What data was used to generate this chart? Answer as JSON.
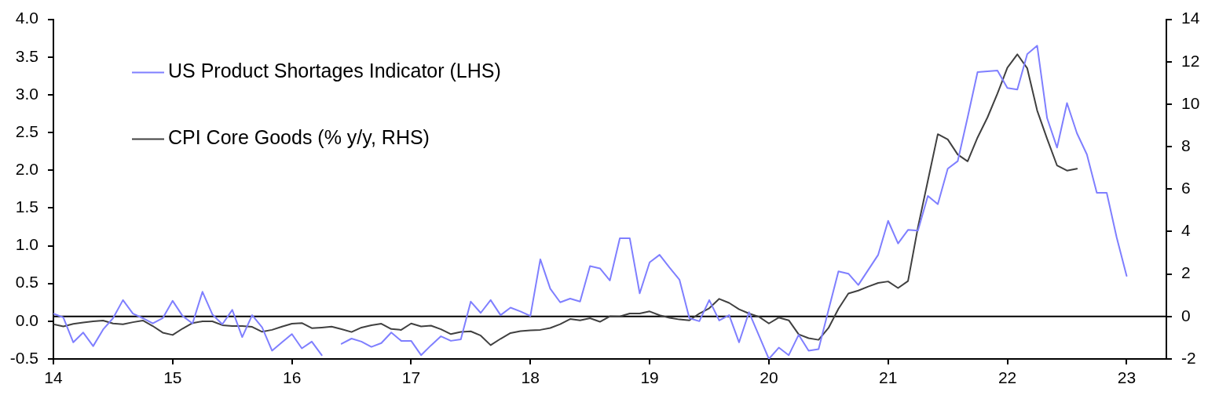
{
  "chart_data": {
    "type": "line",
    "x": [
      "2014-01",
      "2014-02",
      "2014-03",
      "2014-04",
      "2014-05",
      "2014-06",
      "2014-07",
      "2014-08",
      "2014-09",
      "2014-10",
      "2014-11",
      "2014-12",
      "2015-01",
      "2015-02",
      "2015-03",
      "2015-04",
      "2015-05",
      "2015-06",
      "2015-07",
      "2015-08",
      "2015-09",
      "2015-10",
      "2015-11",
      "2015-12",
      "2016-01",
      "2016-02",
      "2016-03",
      "2016-04",
      "2016-05",
      "2016-06",
      "2016-07",
      "2016-08",
      "2016-09",
      "2016-10",
      "2016-11",
      "2016-12",
      "2017-01",
      "2017-02",
      "2017-03",
      "2017-04",
      "2017-05",
      "2017-06",
      "2017-07",
      "2017-08",
      "2017-09",
      "2017-10",
      "2017-11",
      "2017-12",
      "2018-01",
      "2018-02",
      "2018-03",
      "2018-04",
      "2018-05",
      "2018-06",
      "2018-07",
      "2018-08",
      "2018-09",
      "2018-10",
      "2018-11",
      "2018-12",
      "2019-01",
      "2019-02",
      "2019-03",
      "2019-04",
      "2019-05",
      "2019-06",
      "2019-07",
      "2019-08",
      "2019-09",
      "2019-10",
      "2019-11",
      "2019-12",
      "2020-01",
      "2020-02",
      "2020-03",
      "2020-04",
      "2020-05",
      "2020-06",
      "2020-07",
      "2020-08",
      "2020-09",
      "2020-10",
      "2020-11",
      "2020-12",
      "2021-01",
      "2021-02",
      "2021-03",
      "2021-04",
      "2021-05",
      "2021-06",
      "2021-07",
      "2021-08",
      "2021-09",
      "2021-10",
      "2021-11",
      "2021-12",
      "2022-01",
      "2022-02",
      "2022-03",
      "2022-04",
      "2022-05",
      "2022-06",
      "2022-07",
      "2022-08",
      "2022-09",
      "2022-10",
      "2022-11",
      "2022-12",
      "2023-01"
    ],
    "series": [
      {
        "name": "US Product Shortages Indicator (LHS)",
        "color": "#7f7fff",
        "axis": "y",
        "values": [
          0.1,
          0.05,
          -0.28,
          -0.15,
          -0.33,
          -0.11,
          0.04,
          0.28,
          0.1,
          0.04,
          -0.03,
          0.04,
          0.27,
          0.07,
          -0.03,
          0.39,
          0.09,
          -0.04,
          0.15,
          -0.21,
          0.08,
          -0.08,
          -0.39,
          -0.28,
          -0.17,
          -0.36,
          -0.27,
          -0.45,
          null,
          -0.3,
          -0.23,
          -0.27,
          -0.34,
          -0.29,
          -0.15,
          -0.26,
          -0.26,
          -0.45,
          -0.32,
          -0.2,
          -0.26,
          -0.24,
          0.26,
          0.11,
          0.28,
          0.08,
          0.18,
          0.13,
          0.07,
          0.82,
          0.43,
          0.25,
          0.3,
          0.26,
          0.73,
          0.7,
          0.54,
          1.1,
          1.1,
          0.37,
          0.78,
          0.88,
          0.71,
          0.55,
          0.04,
          0.0,
          0.28,
          0.01,
          0.08,
          -0.28,
          0.12,
          -0.19,
          -0.5,
          -0.35,
          -0.45,
          -0.18,
          -0.39,
          -0.37,
          0.15,
          0.66,
          0.63,
          0.48,
          0.68,
          0.88,
          1.33,
          1.03,
          1.21,
          1.2,
          1.66,
          1.55,
          2.02,
          2.12,
          2.7,
          3.3,
          3.31,
          3.32,
          3.09,
          3.07,
          3.54,
          3.65,
          2.69,
          2.3,
          2.89,
          2.49,
          2.21,
          1.7,
          1.7,
          1.11,
          0.6
        ]
      },
      {
        "name": "CPI Core Goods (% y/y, RHS)",
        "color": "#404040",
        "axis": "y2",
        "values": [
          -0.37,
          -0.47,
          -0.35,
          -0.28,
          -0.23,
          -0.19,
          -0.33,
          -0.37,
          -0.27,
          -0.19,
          -0.45,
          -0.76,
          -0.87,
          -0.57,
          -0.31,
          -0.23,
          -0.23,
          -0.41,
          -0.45,
          -0.45,
          -0.49,
          -0.72,
          -0.63,
          -0.48,
          -0.34,
          -0.31,
          -0.55,
          -0.52,
          -0.48,
          -0.6,
          -0.73,
          -0.52,
          -0.41,
          -0.34,
          -0.59,
          -0.63,
          -0.33,
          -0.47,
          -0.43,
          -0.6,
          -0.83,
          -0.73,
          -0.7,
          -0.9,
          -1.35,
          -1.05,
          -0.78,
          -0.69,
          -0.65,
          -0.63,
          -0.54,
          -0.36,
          -0.12,
          -0.18,
          -0.08,
          -0.25,
          0.01,
          0.0,
          0.14,
          0.14,
          0.24,
          0.06,
          -0.06,
          -0.14,
          -0.18,
          0.14,
          0.39,
          0.83,
          0.64,
          0.34,
          0.14,
          -0.01,
          -0.33,
          -0.05,
          -0.18,
          -0.84,
          -1.02,
          -1.1,
          -0.54,
          0.36,
          1.08,
          1.22,
          1.41,
          1.58,
          1.65,
          1.34,
          1.67,
          4.2,
          6.4,
          8.59,
          8.34,
          7.63,
          7.31,
          8.43,
          9.38,
          10.5,
          11.72,
          12.35,
          11.69,
          9.7,
          8.37,
          7.11,
          6.87,
          6.96,
          null,
          null,
          null,
          null,
          null
        ]
      }
    ],
    "xlim": [
      "2014-01",
      "2023-05"
    ],
    "xticks": [
      {
        "value": "2014-01",
        "label": "14"
      },
      {
        "value": "2015-01",
        "label": "15"
      },
      {
        "value": "2016-01",
        "label": "16"
      },
      {
        "value": "2017-01",
        "label": "17"
      },
      {
        "value": "2018-01",
        "label": "18"
      },
      {
        "value": "2019-01",
        "label": "19"
      },
      {
        "value": "2020-01",
        "label": "20"
      },
      {
        "value": "2021-01",
        "label": "21"
      },
      {
        "value": "2022-01",
        "label": "22"
      },
      {
        "value": "2023-01",
        "label": "23"
      }
    ],
    "ylim": [
      -0.5,
      4
    ],
    "yticks": [
      {
        "value": -0.5,
        "label": "-0.5"
      },
      {
        "value": 0,
        "label": "0.0"
      },
      {
        "value": 0.5,
        "label": "0.5"
      },
      {
        "value": 1,
        "label": "1.0"
      },
      {
        "value": 1.5,
        "label": "1.5"
      },
      {
        "value": 2,
        "label": "2.0"
      },
      {
        "value": 2.5,
        "label": "2.5"
      },
      {
        "value": 3,
        "label": "3.0"
      },
      {
        "value": 3.5,
        "label": "3.5"
      },
      {
        "value": 4,
        "label": "4.0"
      }
    ],
    "y2lim": [
      -2,
      14
    ],
    "y2ticks": [
      -2,
      0,
      2,
      4,
      6,
      8,
      10,
      12,
      14
    ],
    "ref_lines": [
      {
        "axis": "y2",
        "value": 0,
        "color": "#000000"
      }
    ],
    "legend": "top left",
    "marker": "none",
    "line_style": "solid"
  }
}
